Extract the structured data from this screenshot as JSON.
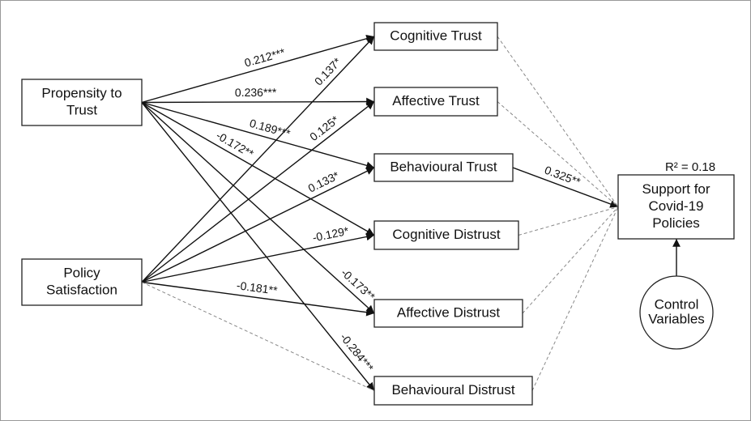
{
  "nodes": [
    {
      "id": "pt",
      "lines": [
        "Propensity to",
        "Trust"
      ]
    },
    {
      "id": "ps",
      "lines": [
        "Policy",
        "Satisfaction"
      ]
    },
    {
      "id": "ct",
      "lines": [
        "Cognitive Trust"
      ]
    },
    {
      "id": "at",
      "lines": [
        "Affective Trust"
      ]
    },
    {
      "id": "bt",
      "lines": [
        "Behavioural Trust"
      ]
    },
    {
      "id": "cd",
      "lines": [
        "Cognitive Distrust"
      ]
    },
    {
      "id": "ad",
      "lines": [
        "Affective Distrust"
      ]
    },
    {
      "id": "bd",
      "lines": [
        "Behavioural Distrust"
      ]
    },
    {
      "id": "sp",
      "lines": [
        "Support for",
        "Covid-19",
        "Policies"
      ]
    },
    {
      "id": "cv",
      "lines": [
        "Control",
        "Variables"
      ]
    }
  ],
  "r_squared": "R² = 0.18",
  "edges": [
    {
      "from": "pt",
      "to": "ct",
      "label": "0.212***"
    },
    {
      "from": "pt",
      "to": "at",
      "label": "0.236***"
    },
    {
      "from": "pt",
      "to": "bt",
      "label": "0.189***"
    },
    {
      "from": "pt",
      "to": "cd",
      "label": "-0.172**"
    },
    {
      "from": "pt",
      "to": "ad",
      "label": "-0.173**"
    },
    {
      "from": "pt",
      "to": "bd",
      "label": "-0.284***"
    },
    {
      "from": "ps",
      "to": "ct",
      "label": "0.137*"
    },
    {
      "from": "ps",
      "to": "at",
      "label": "0.125*"
    },
    {
      "from": "ps",
      "to": "bt",
      "label": "0.133*"
    },
    {
      "from": "ps",
      "to": "cd",
      "label": "-0.129*"
    },
    {
      "from": "ps",
      "to": "ad",
      "label": "-0.181**"
    },
    {
      "from": "ps",
      "to": "bd",
      "dashed": true
    },
    {
      "from": "bt",
      "to": "sp",
      "label": "0.325**"
    },
    {
      "from": "ct",
      "to": "sp",
      "dashed": true
    },
    {
      "from": "at",
      "to": "sp",
      "dashed": true
    },
    {
      "from": "cd",
      "to": "sp",
      "dashed": true
    },
    {
      "from": "ad",
      "to": "sp",
      "dashed": true
    },
    {
      "from": "bd",
      "to": "sp",
      "dashed": true
    },
    {
      "from": "cv",
      "to": "sp"
    }
  ]
}
